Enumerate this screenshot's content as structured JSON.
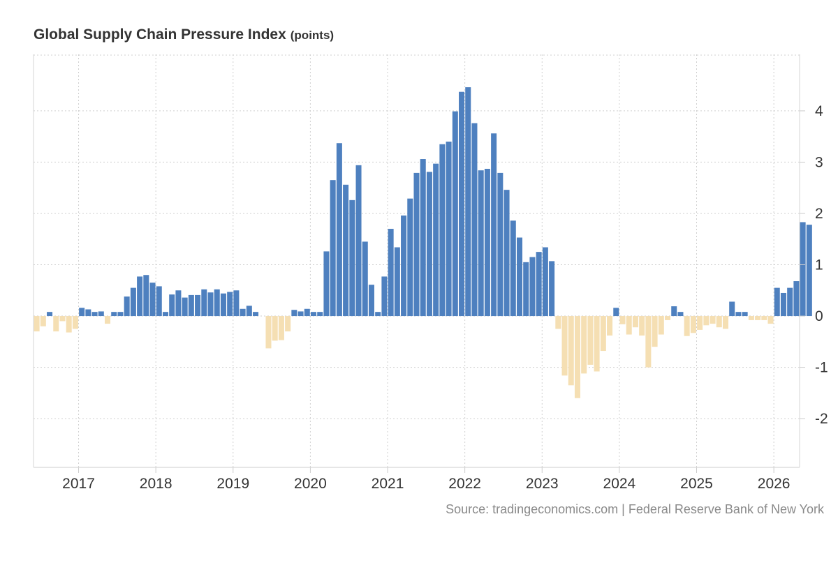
{
  "chart_data": {
    "type": "bar",
    "title": "Global Supply Chain Pressure Index",
    "unit": "(points)",
    "source": "Source: tradingeconomics.com | Federal Reserve Bank of New York",
    "x_start": "2016-06",
    "x_end": "2026-04",
    "ylim": [
      -2.95,
      5.1
    ],
    "y_ticks": [
      4,
      3,
      2,
      1,
      0,
      -1,
      -2
    ],
    "x_ticks": [
      "2017",
      "2018",
      "2019",
      "2020",
      "2021",
      "2022",
      "2023",
      "2024",
      "2025",
      "2026"
    ],
    "grid": true,
    "positive_color": "#4e80bf",
    "negative_color": "#f5dfb3",
    "values": [
      -0.3,
      -0.2,
      0.08,
      -0.3,
      -0.1,
      -0.32,
      -0.25,
      0.16,
      0.13,
      0.08,
      0.09,
      -0.15,
      0.08,
      0.08,
      0.38,
      0.55,
      0.77,
      0.8,
      0.65,
      0.58,
      0.08,
      0.42,
      0.5,
      0.36,
      0.41,
      0.41,
      0.52,
      0.46,
      0.52,
      0.44,
      0.47,
      0.5,
      0.14,
      0.2,
      0.08,
      0.0,
      -0.63,
      -0.48,
      -0.47,
      -0.3,
      0.12,
      0.09,
      0.14,
      0.08,
      0.08,
      1.26,
      2.65,
      3.37,
      2.56,
      2.26,
      2.94,
      1.45,
      0.61,
      0.08,
      0.77,
      1.7,
      1.34,
      1.96,
      2.29,
      2.79,
      3.06,
      2.81,
      2.97,
      3.35,
      3.4,
      3.99,
      4.37,
      4.46,
      3.76,
      2.84,
      2.87,
      3.56,
      2.79,
      2.46,
      1.86,
      1.53,
      1.05,
      1.15,
      1.25,
      1.34,
      1.07,
      -0.25,
      -1.16,
      -1.35,
      -1.6,
      -1.12,
      -0.95,
      -1.08,
      -0.68,
      -0.38,
      0.16,
      -0.16,
      -0.36,
      -0.22,
      -0.38,
      -1.0,
      -0.6,
      -0.36,
      -0.08,
      0.19,
      0.08,
      -0.39,
      -0.33,
      -0.27,
      -0.18,
      -0.15,
      -0.22,
      -0.25,
      0.28,
      0.08,
      0.08,
      -0.08,
      -0.08,
      -0.08,
      -0.15,
      0.55,
      0.45,
      0.55,
      0.68,
      1.83,
      1.78
    ]
  }
}
